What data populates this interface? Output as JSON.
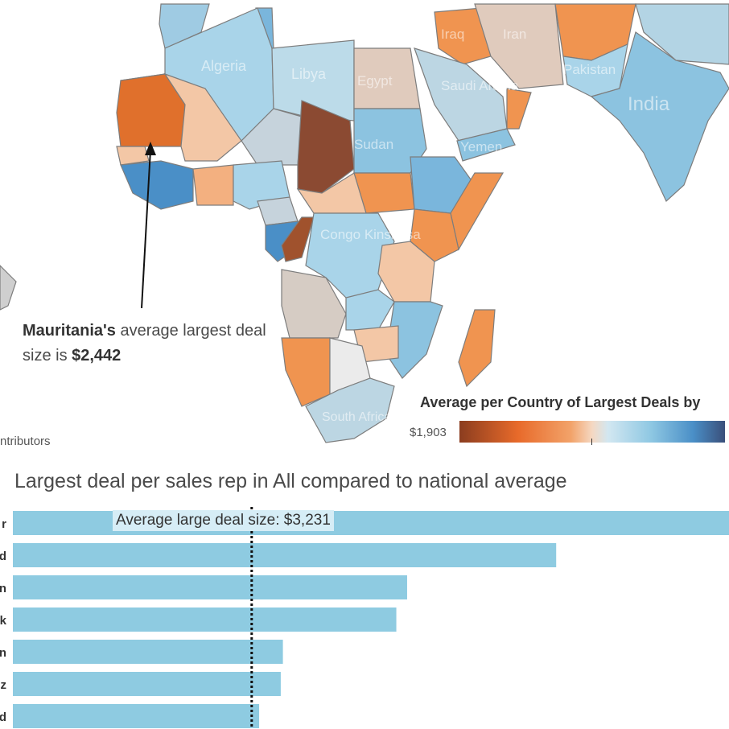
{
  "map": {
    "country_labels": [
      "Algeria",
      "Libya",
      "Egypt",
      "Iran",
      "Iraq",
      "Pakistan",
      "Saudi Arabia",
      "India",
      "Sudan",
      "Yemen",
      "Congo Kinshasa",
      "South Africa"
    ],
    "annotation": {
      "country": "Mauritania's",
      "text": " average largest deal size is ",
      "value": "$2,442"
    },
    "legend": {
      "title": "Average per Country of Largest Deals by",
      "min_label": "$1,903"
    },
    "credit": "ntributors",
    "colors": {
      "dark_orange": "#8b4a32",
      "orange": "#f09450",
      "light_orange": "#f3c7a6",
      "neutral": "#d6ccc4",
      "light_blue": "#a9d4e9",
      "blue": "#8cc3e0",
      "dark_blue": "#4a8fc7"
    }
  },
  "chart_data": {
    "type": "bar",
    "orientation": "horizontal",
    "title": "Largest deal per sales rep in All compared to national average",
    "categories": [
      "r",
      "d",
      "n",
      "k",
      "n",
      "z",
      "d"
    ],
    "values": [
      7650,
      6050,
      4670,
      4570,
      3520,
      3500,
      3300
    ],
    "xlim": [
      1020,
      7650
    ],
    "reference_line": {
      "value": 3231,
      "label": "Average large deal size: $3,231"
    }
  }
}
